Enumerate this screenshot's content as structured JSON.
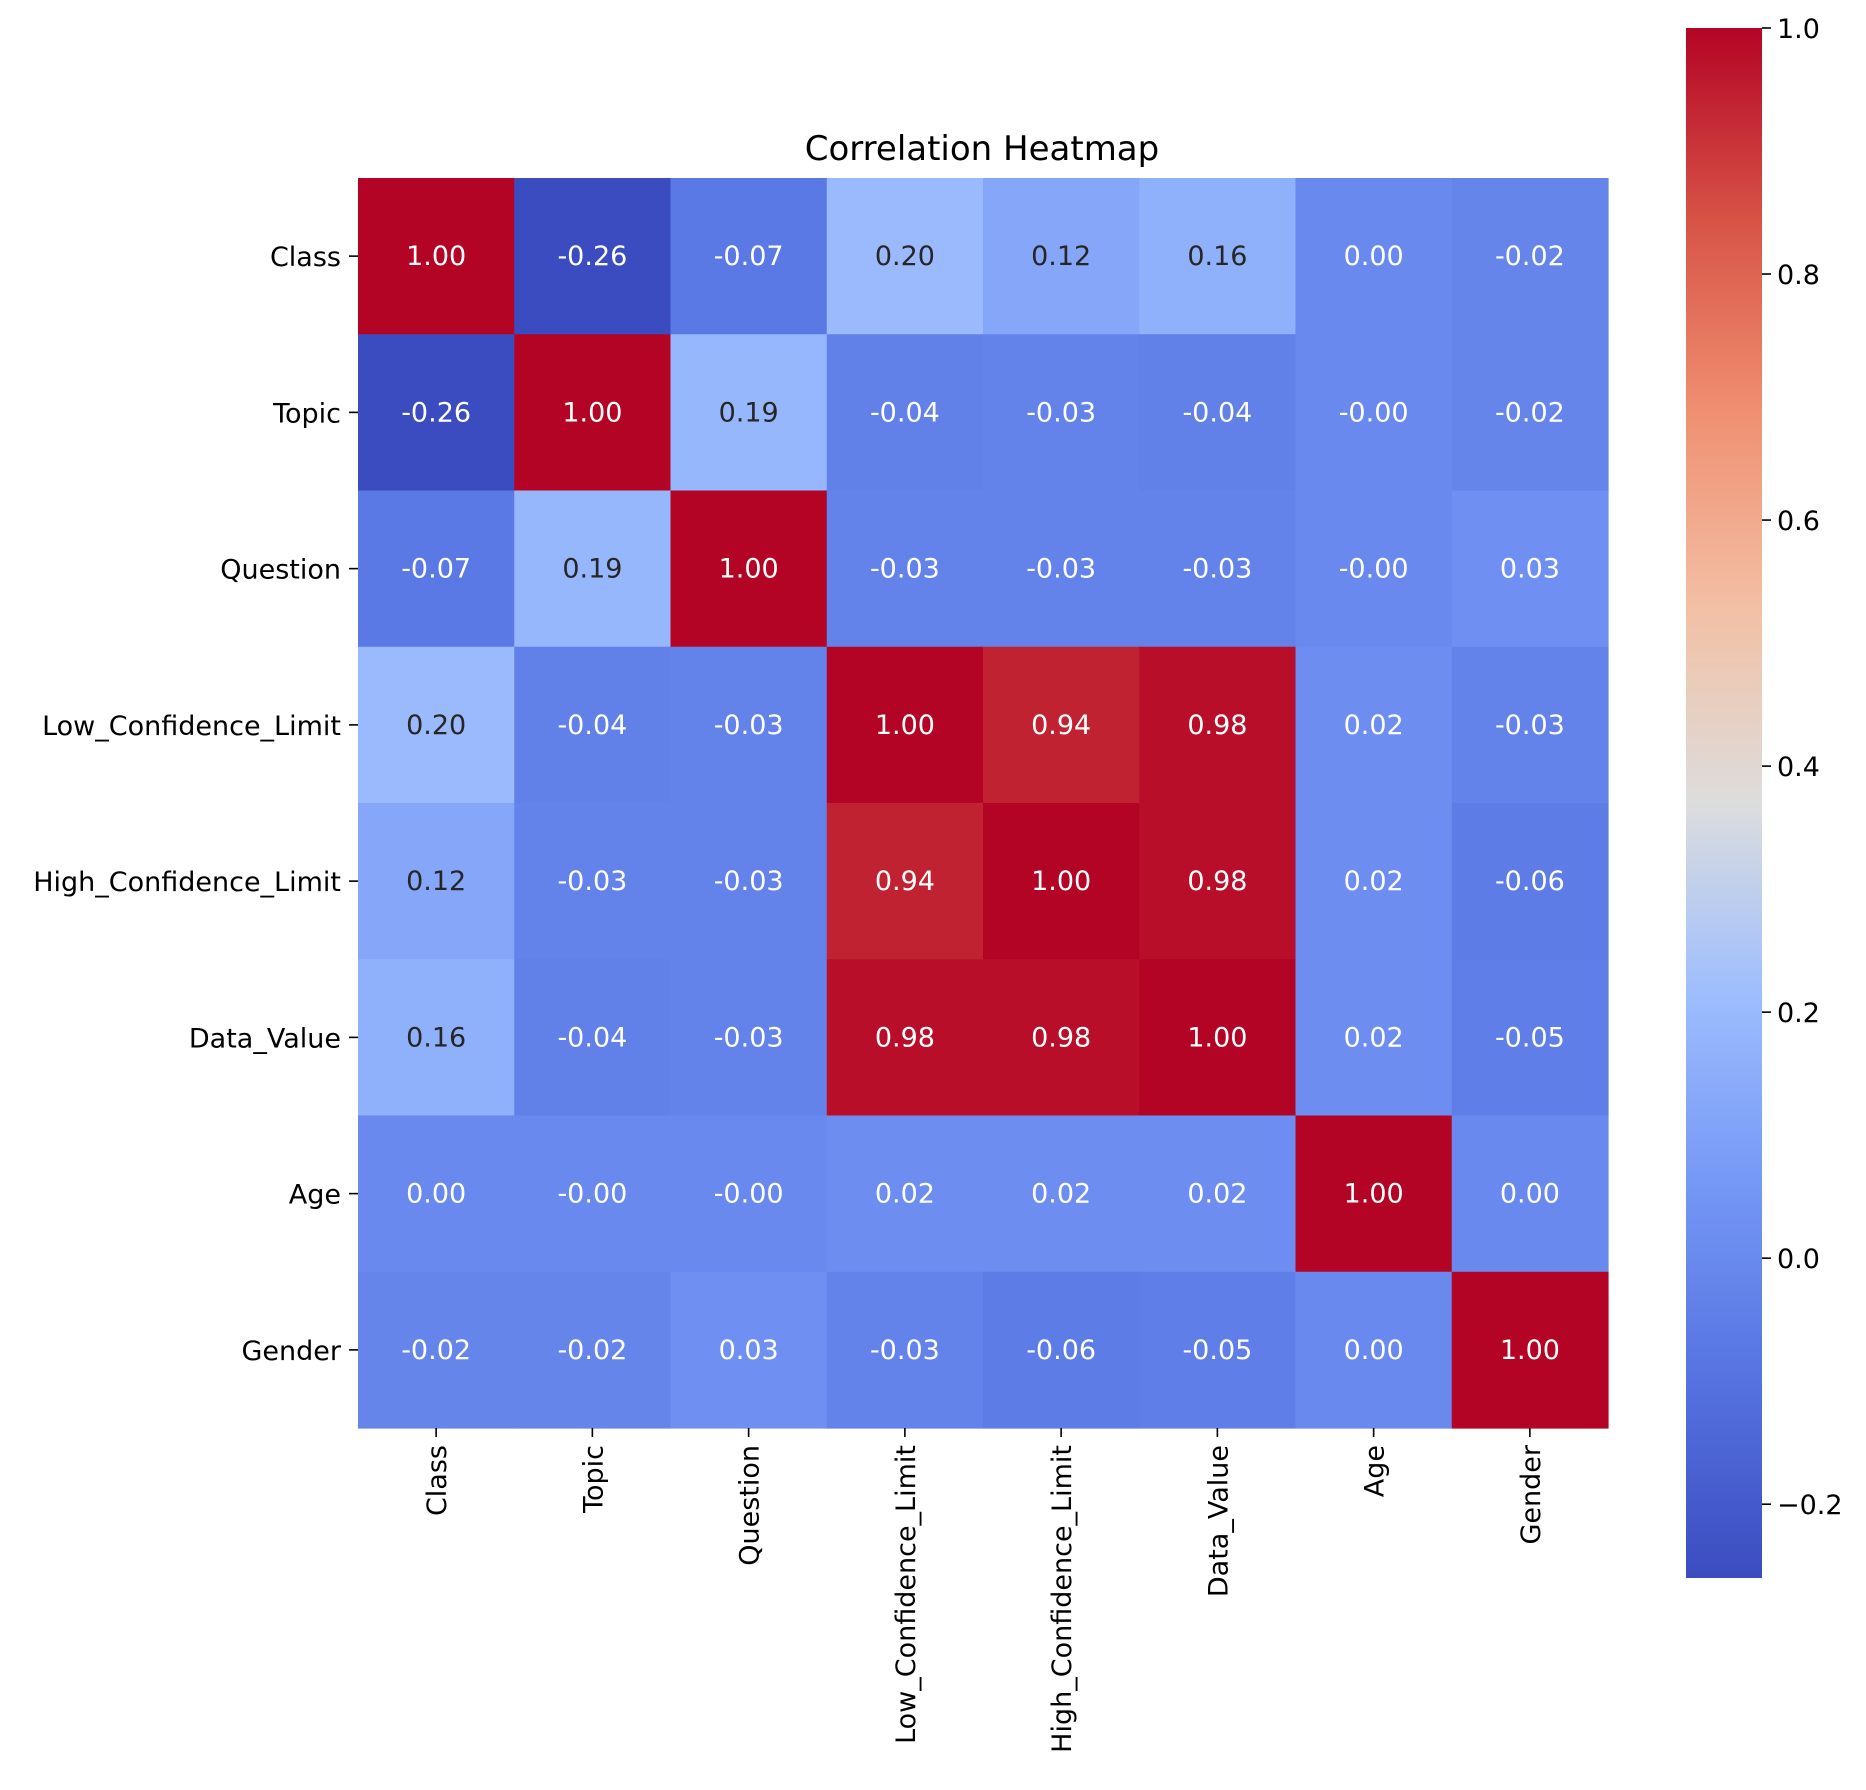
{
  "chart_data": {
    "type": "heatmap",
    "title": "Correlation Heatmap",
    "xlabel": "",
    "ylabel": "",
    "colormap": "coolwarm",
    "rows": [
      "Class",
      "Topic",
      "Question",
      "Low_Confidence_Limit",
      "High_Confidence_Limit",
      "Data_Value",
      "Age",
      "Gender"
    ],
    "columns": [
      "Class",
      "Topic",
      "Question",
      "Low_Confidence_Limit",
      "High_Confidence_Limit",
      "Data_Value",
      "Age",
      "Gender"
    ],
    "values": [
      [
        1.0,
        -0.26,
        -0.07,
        0.2,
        0.12,
        0.16,
        0.0,
        -0.02
      ],
      [
        -0.26,
        1.0,
        0.19,
        -0.04,
        -0.03,
        -0.04,
        -0.001,
        -0.02
      ],
      [
        -0.07,
        0.19,
        1.0,
        -0.03,
        -0.03,
        -0.03,
        -0.001,
        0.03
      ],
      [
        0.2,
        -0.04,
        -0.03,
        1.0,
        0.94,
        0.98,
        0.02,
        -0.03
      ],
      [
        0.12,
        -0.03,
        -0.03,
        0.94,
        1.0,
        0.98,
        0.02,
        -0.06
      ],
      [
        0.16,
        -0.04,
        -0.03,
        0.98,
        0.98,
        1.0,
        0.02,
        -0.05
      ],
      [
        0.0,
        -0.001,
        -0.001,
        0.02,
        0.02,
        0.02,
        1.0,
        0.0
      ],
      [
        -0.02,
        -0.02,
        0.03,
        -0.03,
        -0.06,
        -0.05,
        0.0,
        1.0
      ]
    ],
    "annotations": [
      [
        "1.00",
        "-0.26",
        "-0.07",
        "0.20",
        "0.12",
        "0.16",
        "0.00",
        "-0.02"
      ],
      [
        "-0.26",
        "1.00",
        "0.19",
        "-0.04",
        "-0.03",
        "-0.04",
        "-0.00",
        "-0.02"
      ],
      [
        "-0.07",
        "0.19",
        "1.00",
        "-0.03",
        "-0.03",
        "-0.03",
        "-0.00",
        "0.03"
      ],
      [
        "0.20",
        "-0.04",
        "-0.03",
        "1.00",
        "0.94",
        "0.98",
        "0.02",
        "-0.03"
      ],
      [
        "0.12",
        "-0.03",
        "-0.03",
        "0.94",
        "1.00",
        "0.98",
        "0.02",
        "-0.06"
      ],
      [
        "0.16",
        "-0.04",
        "-0.03",
        "0.98",
        "0.98",
        "1.00",
        "0.02",
        "-0.05"
      ],
      [
        "0.00",
        "-0.00",
        "-0.00",
        "0.02",
        "0.02",
        "0.02",
        "1.00",
        "0.00"
      ],
      [
        "-0.02",
        "-0.02",
        "0.03",
        "-0.03",
        "-0.06",
        "-0.05",
        "0.00",
        "1.00"
      ]
    ],
    "colorbar": {
      "range": [
        -0.26,
        1.0
      ],
      "ticks": [
        -0.2,
        0.0,
        0.2,
        0.4,
        0.6,
        0.8,
        1.0
      ],
      "tick_labels": [
        "−0.2",
        "0.0",
        "0.2",
        "0.4",
        "0.6",
        "0.8",
        "1.0"
      ]
    },
    "grid": false,
    "legend": "colorbar-right"
  }
}
